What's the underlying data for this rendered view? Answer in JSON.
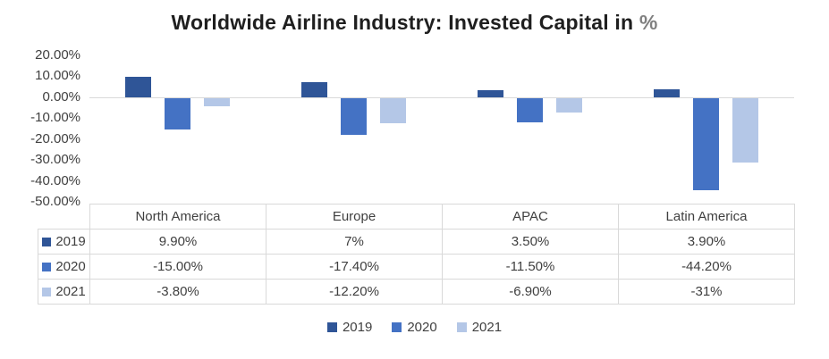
{
  "title": {
    "text": "Worldwide Airline Industry: Invested Capital in",
    "suffix": "%",
    "suffix_color": "#808080"
  },
  "chart_data": {
    "type": "bar",
    "title": "Worldwide Airline Industry: Invested Capital in %",
    "categories": [
      "North America",
      "Europe",
      "APAC",
      "Latin America"
    ],
    "series": [
      {
        "name": "2019",
        "color": "#2f5597",
        "values": [
          9.9,
          7,
          3.5,
          3.9
        ],
        "display": [
          "9.90%",
          "7%",
          "3.50%",
          "3.90%"
        ]
      },
      {
        "name": "2020",
        "color": "#4472c4",
        "values": [
          -15,
          -17.4,
          -11.5,
          -44.2
        ],
        "display": [
          "-15.00%",
          "-17.40%",
          "-11.50%",
          "-44.20%"
        ]
      },
      {
        "name": "2021",
        "color": "#b4c7e7",
        "values": [
          -3.8,
          -12.2,
          -6.9,
          -31
        ],
        "display": [
          "-3.80%",
          "-12.20%",
          "-6.90%",
          "-31%"
        ]
      }
    ],
    "xlabel": "",
    "ylabel": "",
    "ylim": [
      -50,
      20
    ],
    "yticks": [
      20,
      10,
      0,
      -10,
      -20,
      -30,
      -40,
      -50
    ],
    "ytick_labels": [
      "20.00%",
      "10.00%",
      "0.00%",
      "-10.00%",
      "-20.00%",
      "-30.00%",
      "-40.00%",
      "-50.00%"
    ],
    "grid": false,
    "zero_line": true,
    "legend_position": "bottom",
    "show_data_table": true
  }
}
